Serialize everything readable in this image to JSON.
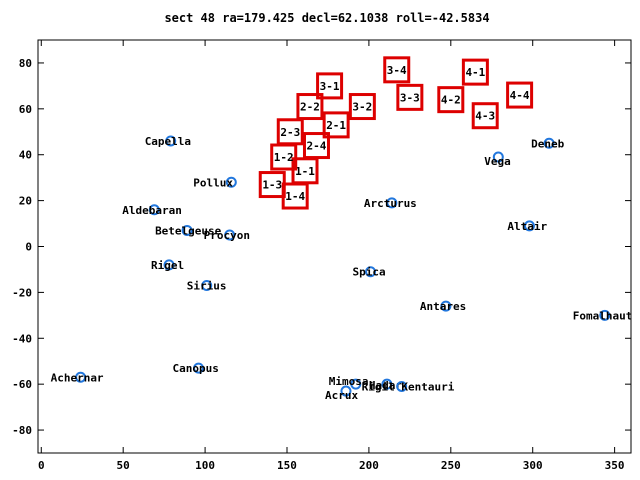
{
  "chart_data": {
    "type": "scatter",
    "title": "sect 48 ra=179.425 decl=62.1038 roll=-42.5834",
    "xlabel": "",
    "ylabel": "",
    "xlim": [
      -2,
      360
    ],
    "ylim": [
      -90,
      90
    ],
    "x_ticks": [
      0,
      50,
      100,
      150,
      200,
      250,
      300,
      350
    ],
    "y_ticks": [
      -80,
      -60,
      -40,
      -20,
      0,
      20,
      40,
      60,
      80
    ],
    "grid": false,
    "star_color": "#2277dd",
    "box_color": "#dd0000",
    "stars": [
      {
        "name": "Capella",
        "x": 79,
        "y": 46
      },
      {
        "name": "Pollux",
        "x": 116,
        "y": 28
      },
      {
        "name": "Aldebaran",
        "x": 69,
        "y": 16
      },
      {
        "name": "Betelgeuse",
        "x": 89,
        "y": 7
      },
      {
        "name": "Procyon",
        "x": 115,
        "y": 5
      },
      {
        "name": "Rigel",
        "x": 78,
        "y": -8
      },
      {
        "name": "Sirius",
        "x": 101,
        "y": -17
      },
      {
        "name": "Canopus",
        "x": 96,
        "y": -53
      },
      {
        "name": "Achernar",
        "x": 24,
        "y": -57
      },
      {
        "name": "Arcturus",
        "x": 214,
        "y": 19
      },
      {
        "name": "Spica",
        "x": 201,
        "y": -11
      },
      {
        "name": "Antares",
        "x": 247,
        "y": -26
      },
      {
        "name": "Mimosa",
        "x": 192,
        "y": -60
      },
      {
        "name": "Acrux",
        "x": 186,
        "y": -63
      },
      {
        "name": "Hadar",
        "x": 211,
        "y": -60
      },
      {
        "name": "Rigil Kentauri",
        "x": 220,
        "y": -61
      },
      {
        "name": "Vega",
        "x": 279,
        "y": 39
      },
      {
        "name": "Deneb",
        "x": 310,
        "y": 45
      },
      {
        "name": "Altair",
        "x": 298,
        "y": 9
      },
      {
        "name": "Fomalhaut",
        "x": 344,
        "y": -30
      }
    ],
    "boxes": [
      {
        "label": "1-1",
        "x": 161,
        "y": 33
      },
      {
        "label": "1-2",
        "x": 148,
        "y": 39
      },
      {
        "label": "1-3",
        "x": 141,
        "y": 27
      },
      {
        "label": "1-4",
        "x": 155,
        "y": 22
      },
      {
        "label": "2-1",
        "x": 180,
        "y": 53
      },
      {
        "label": "2-2",
        "x": 164,
        "y": 61
      },
      {
        "label": "2-3",
        "x": 152,
        "y": 50
      },
      {
        "label": "2-4",
        "x": 168,
        "y": 44
      },
      {
        "label": "3-1",
        "x": 176,
        "y": 70
      },
      {
        "label": "3-2",
        "x": 196,
        "y": 61
      },
      {
        "label": "3-3",
        "x": 225,
        "y": 65
      },
      {
        "label": "3-4",
        "x": 217,
        "y": 77
      },
      {
        "label": "4-1",
        "x": 265,
        "y": 76
      },
      {
        "label": "4-2",
        "x": 250,
        "y": 64
      },
      {
        "label": "4-3",
        "x": 271,
        "y": 57
      },
      {
        "label": "4-4",
        "x": 292,
        "y": 66
      }
    ]
  }
}
